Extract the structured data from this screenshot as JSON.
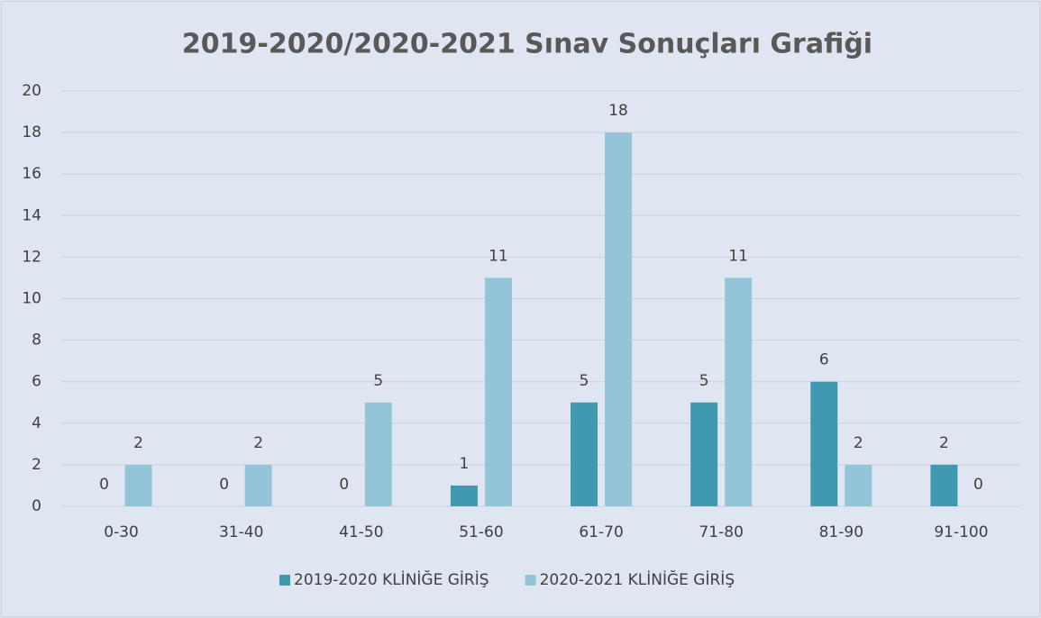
{
  "chart_data": {
    "type": "bar",
    "title": "2019-2020/2020-2021 Sınav Sonuçları Grafiği",
    "categories": [
      "0-30",
      "31-40",
      "41-50",
      "51-60",
      "61-70",
      "71-80",
      "81-90",
      "91-100"
    ],
    "series": [
      {
        "name": "2019-2020 KLİNİĞE GİRİŞ",
        "color": "#3f9ab0",
        "values": [
          0,
          0,
          0,
          1,
          5,
          5,
          6,
          2
        ]
      },
      {
        "name": "2020-2021 KLİNİĞE GİRİŞ",
        "color": "#93c4d7",
        "values": [
          2,
          2,
          5,
          11,
          18,
          11,
          2,
          0
        ]
      }
    ],
    "ylim": [
      0,
      20
    ],
    "yticks": [
      0,
      2,
      4,
      6,
      8,
      10,
      12,
      14,
      16,
      18,
      20
    ],
    "grid": true,
    "legend": "bottom"
  }
}
